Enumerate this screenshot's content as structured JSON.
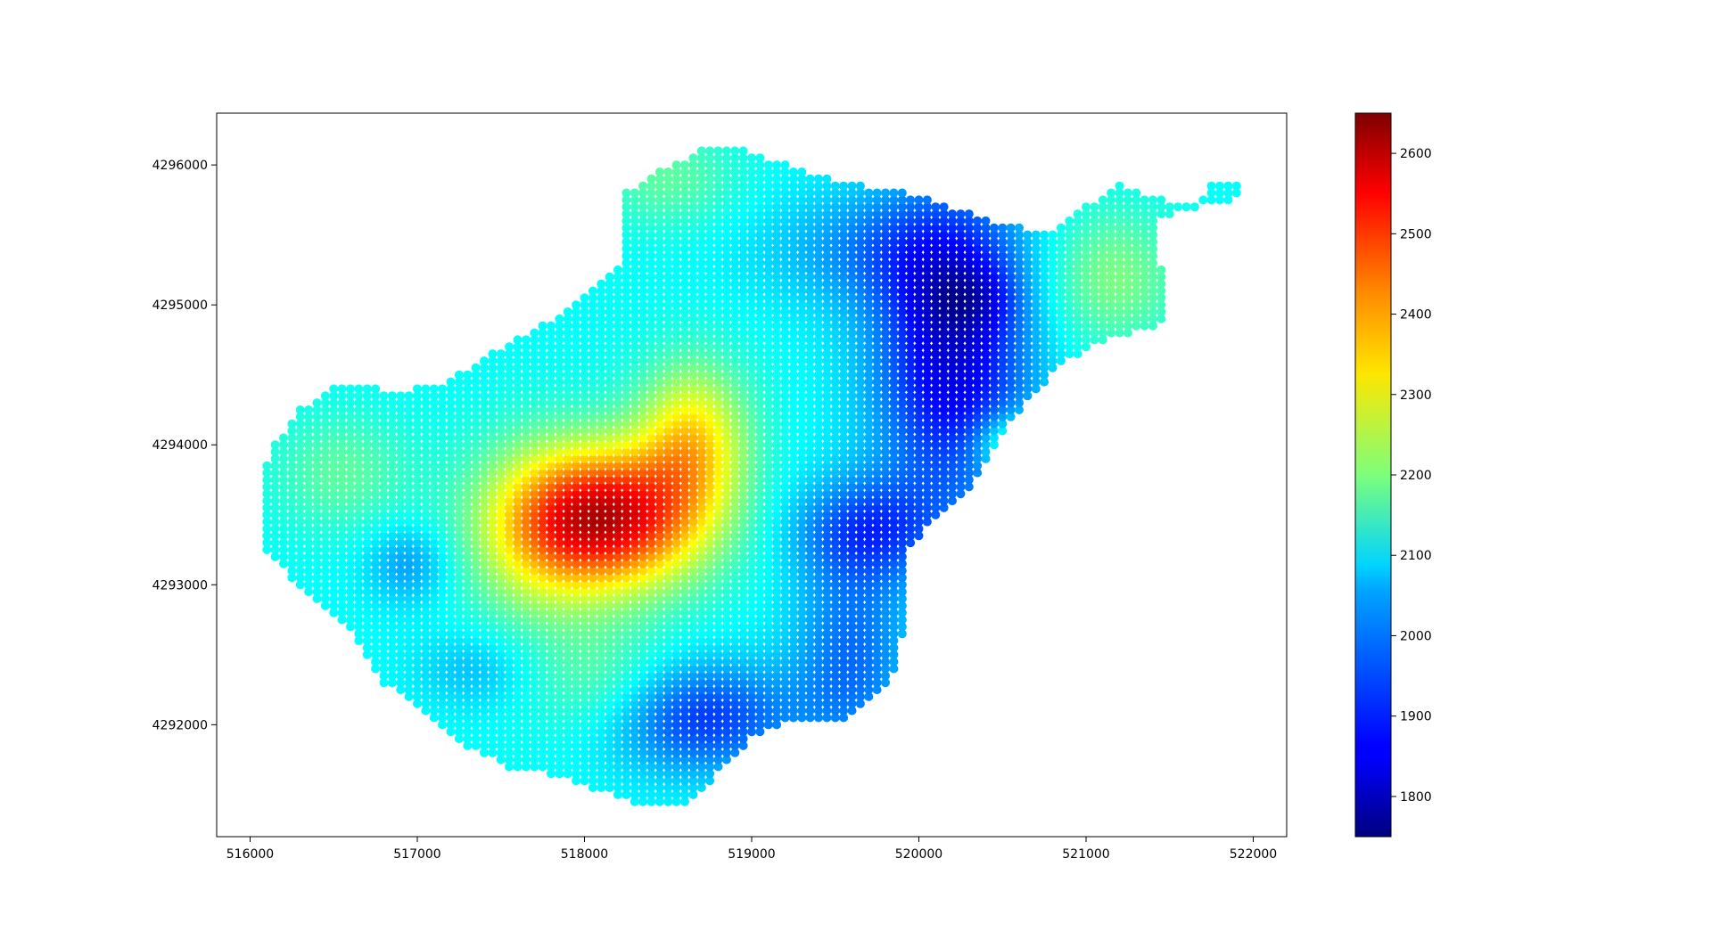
{
  "chart_data": {
    "type": "scatter",
    "title": "",
    "xlabel": "",
    "ylabel": "",
    "xlim": [
      515800,
      522200
    ],
    "ylim": [
      4291200,
      4296370
    ],
    "xticks": [
      "516000",
      "517000",
      "518000",
      "519000",
      "520000",
      "521000",
      "522000"
    ],
    "xtick_values": [
      516000,
      517000,
      518000,
      519000,
      520000,
      521000,
      522000
    ],
    "yticks": [
      "4292000",
      "4293000",
      "4294000",
      "4295000",
      "4296000"
    ],
    "ytick_values": [
      4292000,
      4293000,
      4294000,
      4295000,
      4296000
    ],
    "grid": false,
    "grid_spacing": 50,
    "colormap": "jet",
    "colorbar": {
      "vmin": 1750,
      "vmax": 2650,
      "ticks": [
        "1800",
        "1900",
        "2000",
        "2100",
        "2200",
        "2300",
        "2400",
        "2500",
        "2600"
      ],
      "tick_values": [
        1800,
        1900,
        2000,
        2100,
        2200,
        2300,
        2400,
        2500,
        2600
      ],
      "placement": "right"
    },
    "boundary_polygon": [
      [
        516080,
        4293850
      ],
      [
        516150,
        4294000
      ],
      [
        516300,
        4294250
      ],
      [
        516550,
        4294450
      ],
      [
        516850,
        4294380
      ],
      [
        517150,
        4294430
      ],
      [
        517400,
        4294620
      ],
      [
        517700,
        4294820
      ],
      [
        518000,
        4295050
      ],
      [
        518250,
        4295300
      ],
      [
        518250,
        4295800
      ],
      [
        518450,
        4295960
      ],
      [
        518700,
        4296100
      ],
      [
        518900,
        4296150
      ],
      [
        519100,
        4296050
      ],
      [
        519400,
        4295920
      ],
      [
        519700,
        4295850
      ],
      [
        520000,
        4295780
      ],
      [
        520300,
        4295660
      ],
      [
        520550,
        4295560
      ],
      [
        520800,
        4295520
      ],
      [
        521000,
        4295700
      ],
      [
        521200,
        4295860
      ],
      [
        521420,
        4295760
      ],
      [
        521680,
        4295720
      ],
      [
        521750,
        4295900
      ],
      [
        521920,
        4295900
      ],
      [
        521900,
        4295760
      ],
      [
        521580,
        4295680
      ],
      [
        521450,
        4295630
      ],
      [
        521430,
        4295400
      ],
      [
        521480,
        4295050
      ],
      [
        521500,
        4294880
      ],
      [
        521300,
        4294800
      ],
      [
        521050,
        4294720
      ],
      [
        520800,
        4294520
      ],
      [
        520650,
        4294300
      ],
      [
        520500,
        4294080
      ],
      [
        520420,
        4293900
      ],
      [
        520250,
        4293600
      ],
      [
        520050,
        4293400
      ],
      [
        519950,
        4293250
      ],
      [
        519950,
        4293000
      ],
      [
        519920,
        4292750
      ],
      [
        519880,
        4292450
      ],
      [
        519780,
        4292250
      ],
      [
        519600,
        4292050
      ],
      [
        519400,
        4292020
      ],
      [
        519200,
        4292000
      ],
      [
        519000,
        4291900
      ],
      [
        518800,
        4291650
      ],
      [
        518600,
        4291420
      ],
      [
        518350,
        4291420
      ],
      [
        518100,
        4291530
      ],
      [
        517800,
        4291650
      ],
      [
        517550,
        4291700
      ],
      [
        517300,
        4291850
      ],
      [
        517000,
        4292150
      ],
      [
        516800,
        4292300
      ],
      [
        516650,
        4292600
      ],
      [
        516450,
        4292850
      ],
      [
        516250,
        4293050
      ],
      [
        516100,
        4293250
      ],
      [
        516080,
        4293600
      ]
    ],
    "field_base": 2090,
    "field_anomalies": [
      {
        "x": 518150,
        "y": 4293480,
        "amplitude": 470,
        "sx": 400,
        "sy": 360
      },
      {
        "x": 518650,
        "y": 4294050,
        "amplitude": 230,
        "sx": 230,
        "sy": 380
      },
      {
        "x": 517700,
        "y": 4293350,
        "amplitude": 130,
        "sx": 300,
        "sy": 450
      },
      {
        "x": 520200,
        "y": 4294650,
        "amplitude": -260,
        "sx": 330,
        "sy": 750
      },
      {
        "x": 520300,
        "y": 4295050,
        "amplitude": -80,
        "sx": 200,
        "sy": 180
      },
      {
        "x": 519700,
        "y": 4293400,
        "amplitude": -150,
        "sx": 320,
        "sy": 260
      },
      {
        "x": 519600,
        "y": 4292500,
        "amplitude": -130,
        "sx": 250,
        "sy": 550
      },
      {
        "x": 518700,
        "y": 4292050,
        "amplitude": -180,
        "sx": 400,
        "sy": 280
      },
      {
        "x": 519800,
        "y": 4295400,
        "amplitude": -100,
        "sx": 500,
        "sy": 300
      },
      {
        "x": 516950,
        "y": 4293150,
        "amplitude": -90,
        "sx": 180,
        "sy": 200
      },
      {
        "x": 517350,
        "y": 4292400,
        "amplitude": -60,
        "sx": 250,
        "sy": 200
      },
      {
        "x": 521150,
        "y": 4295200,
        "amplitude": 110,
        "sx": 300,
        "sy": 350
      },
      {
        "x": 518500,
        "y": 4295900,
        "amplitude": 80,
        "sx": 300,
        "sy": 250
      },
      {
        "x": 516550,
        "y": 4293800,
        "amplitude": 80,
        "sx": 300,
        "sy": 300
      },
      {
        "x": 518100,
        "y": 4292300,
        "amplitude": 80,
        "sx": 300,
        "sy": 300
      },
      {
        "x": 520550,
        "y": 4294000,
        "amplitude": 150,
        "sx": 150,
        "sy": 150
      }
    ]
  }
}
